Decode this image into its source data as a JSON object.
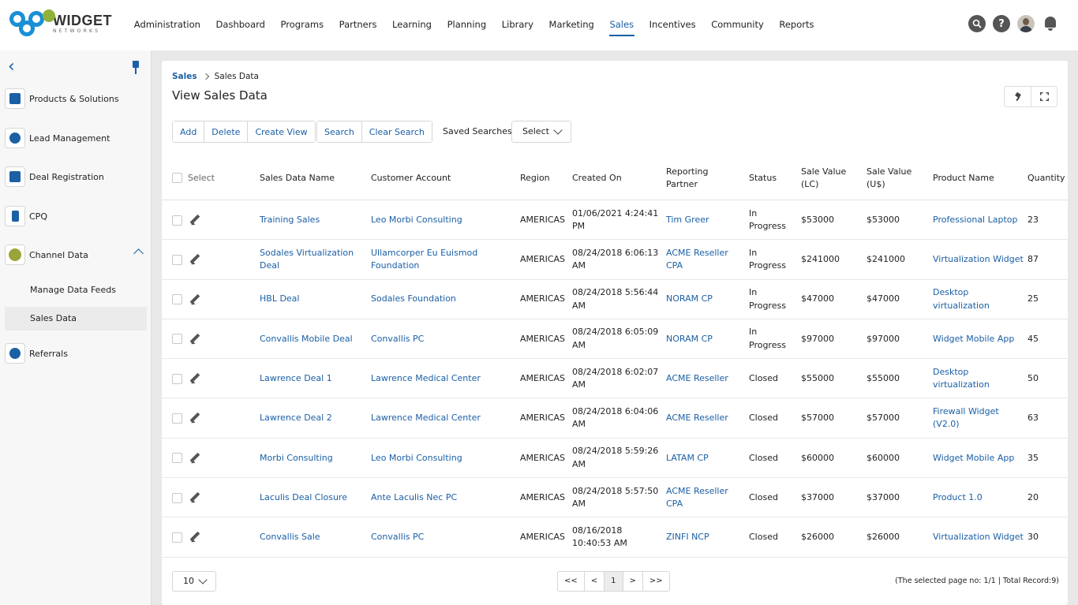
{
  "brand": {
    "name": "WIDGET",
    "sub": "NETWORKS"
  },
  "nav": [
    "Administration",
    "Dashboard",
    "Programs",
    "Partners",
    "Learning",
    "Planning",
    "Library",
    "Marketing",
    "Sales",
    "Incentives",
    "Community",
    "Reports"
  ],
  "nav_active": "Sales",
  "top_icons": {
    "search": "?",
    "help": "?"
  },
  "sidebar": {
    "items": [
      {
        "label": "Products & Solutions",
        "icon": "cube-icon"
      },
      {
        "label": "Lead Management",
        "icon": "org-chart-icon"
      },
      {
        "label": "Deal Registration",
        "icon": "document-icon"
      },
      {
        "label": "CPQ",
        "icon": "calculator-icon"
      },
      {
        "label": "Channel Data",
        "icon": "ball-icon"
      },
      {
        "label": "Referrals",
        "icon": "people-icon"
      }
    ],
    "sub_items": [
      "Manage Data Feeds",
      "Sales Data"
    ]
  },
  "breadcrumb": {
    "parent": "Sales",
    "current": "Sales Data"
  },
  "page_title": "View Sales Data",
  "toolbar": {
    "add": "Add",
    "delete": "Delete",
    "create_view": "Create View",
    "search": "Search",
    "clear_search": "Clear Search",
    "saved_searches_label": "Saved Searches",
    "saved_searches_value": "Select"
  },
  "table": {
    "headers": {
      "select": "Select",
      "name": "Sales Data Name",
      "customer": "Customer Account",
      "region": "Region",
      "created": "Created On",
      "partner": "Reporting Partner",
      "status": "Status",
      "lc": "Sale Value (LC)",
      "us": "Sale Value (U$)",
      "product": "Product Name",
      "qty": "Quantity"
    },
    "rows": [
      {
        "name": "Training Sales",
        "customer": "Leo Morbi Consulting",
        "region": "AMERICAS",
        "created": "01/06/2021 4:24:41 PM",
        "partner": "Tim Greer",
        "status": "In Progress",
        "lc": "$53000",
        "us": "$53000",
        "product": "Professional Laptop",
        "qty": "23"
      },
      {
        "name": "Sodales Virtualization Deal",
        "customer": "Ullamcorper Eu Euismod Foundation",
        "region": "AMERICAS",
        "created": "08/24/2018 6:06:13 AM",
        "partner": "ACME Reseller CPA",
        "status": "In Progress",
        "lc": "$241000",
        "us": "$241000",
        "product": "Virtualization Widget",
        "qty": "87"
      },
      {
        "name": "HBL Deal",
        "customer": "Sodales Foundation",
        "region": "AMERICAS",
        "created": "08/24/2018 5:56:44 AM",
        "partner": "NORAM CP",
        "status": "In Progress",
        "lc": "$47000",
        "us": "$47000",
        "product": "Desktop virtualization",
        "qty": "25"
      },
      {
        "name": "Convallis Mobile Deal",
        "customer": "Convallis PC",
        "region": "AMERICAS",
        "created": "08/24/2018 6:05:09 AM",
        "partner": "NORAM CP",
        "status": "In Progress",
        "lc": "$97000",
        "us": "$97000",
        "product": "Widget Mobile App",
        "qty": "45"
      },
      {
        "name": "Lawrence Deal 1",
        "customer": "Lawrence Medical Center",
        "region": "AMERICAS",
        "created": "08/24/2018 6:02:07 AM",
        "partner": "ACME Reseller",
        "status": "Closed",
        "lc": "$55000",
        "us": "$55000",
        "product": "Desktop virtualization",
        "qty": "50"
      },
      {
        "name": "Lawrence Deal 2",
        "customer": "Lawrence Medical Center",
        "region": "AMERICAS",
        "created": "08/24/2018 6:04:06 AM",
        "partner": "ACME Reseller",
        "status": "Closed",
        "lc": "$57000",
        "us": "$57000",
        "product": "Firewall Widget (V2.0)",
        "qty": "63"
      },
      {
        "name": "Morbi Consulting",
        "customer": "Leo Morbi Consulting",
        "region": "AMERICAS",
        "created": "08/24/2018 5:59:26 AM",
        "partner": "LATAM CP",
        "status": "Closed",
        "lc": "$60000",
        "us": "$60000",
        "product": "Widget Mobile App",
        "qty": "35"
      },
      {
        "name": "Laculis Deal Closure",
        "customer": "Ante Laculis Nec PC",
        "region": "AMERICAS",
        "created": "08/24/2018 5:57:50 AM",
        "partner": "ACME Reseller CPA",
        "status": "Closed",
        "lc": "$37000",
        "us": "$37000",
        "product": "Product 1.0",
        "qty": "20"
      },
      {
        "name": "Convallis Sale",
        "customer": "Convallis PC",
        "region": "AMERICAS",
        "created": "08/16/2018 10:40:53 AM",
        "partner": "ZINFI NCP",
        "status": "Closed",
        "lc": "$26000",
        "us": "$26000",
        "product": "Virtualization Widget",
        "qty": "30"
      }
    ]
  },
  "footer": {
    "per_page": "10",
    "pager": [
      "<<",
      "<",
      "1",
      ">",
      ">>"
    ],
    "record_info": "(The selected page no: 1/1 | Total Record:9)"
  }
}
